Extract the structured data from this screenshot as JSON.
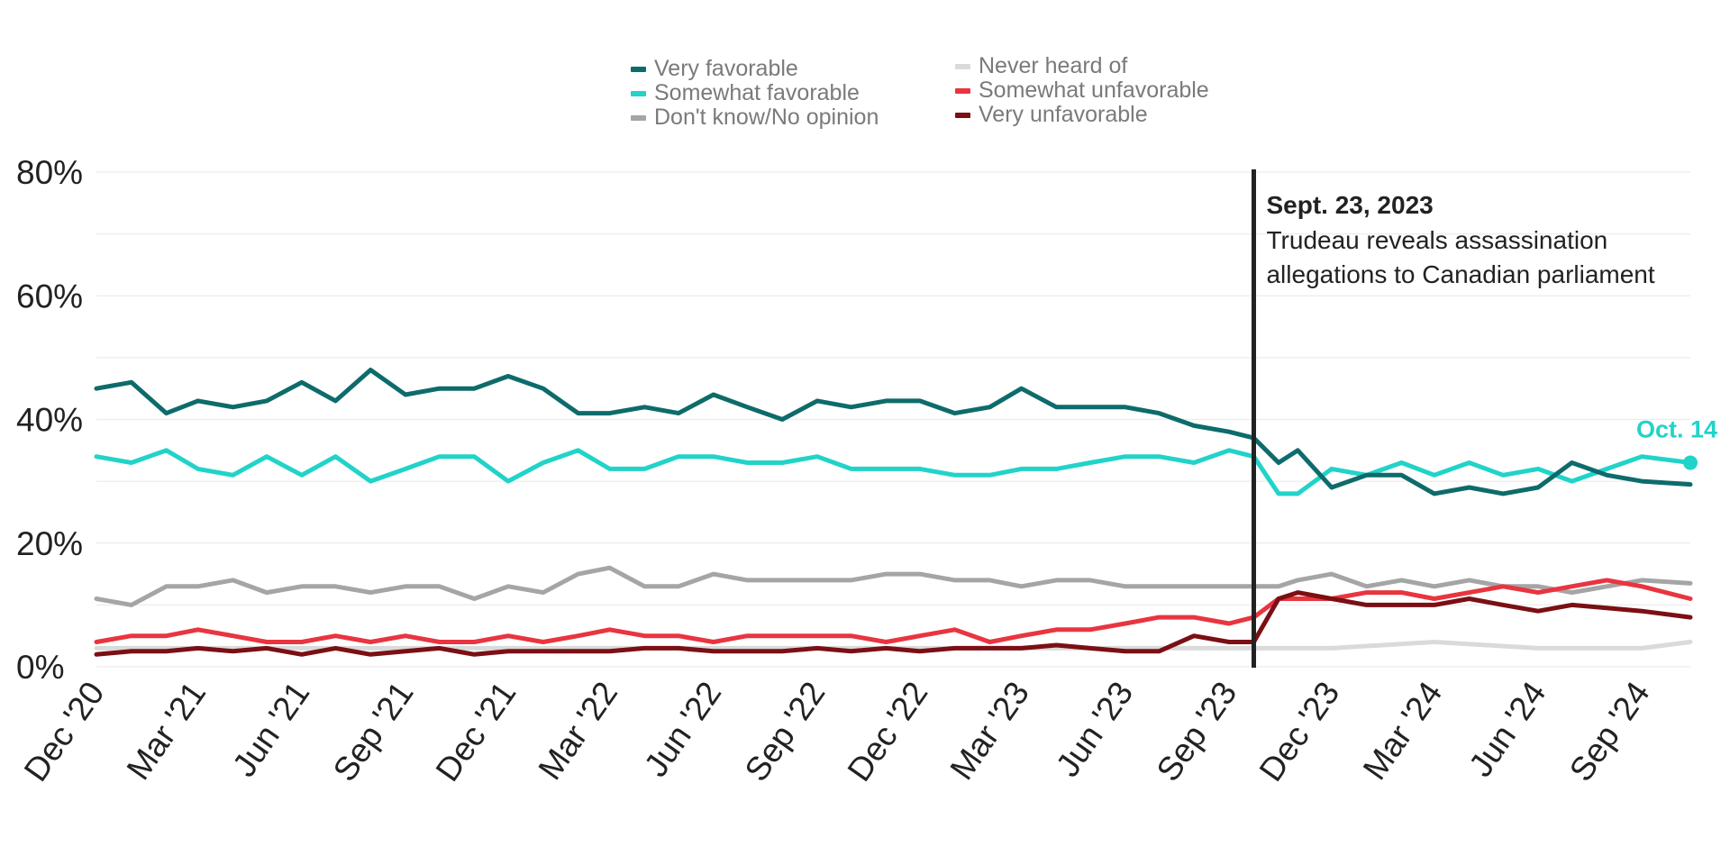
{
  "chart_data": {
    "type": "line",
    "ylim": [
      0,
      80
    ],
    "y_ticks": [
      "0%",
      "20%",
      "40%",
      "60%",
      "80%"
    ],
    "y_tick_values": [
      0,
      20,
      40,
      60,
      80
    ],
    "x_range": [
      "2020-12-01",
      "2024-10-14"
    ],
    "x_ticks": [
      {
        "label": "Dec '20",
        "date": "2020-12-01"
      },
      {
        "label": "Mar '21",
        "date": "2021-03-01"
      },
      {
        "label": "Jun '21",
        "date": "2021-06-01"
      },
      {
        "label": "Sep '21",
        "date": "2021-09-01"
      },
      {
        "label": "Dec '21",
        "date": "2021-12-01"
      },
      {
        "label": "Mar '22",
        "date": "2022-03-01"
      },
      {
        "label": "Jun '22",
        "date": "2022-06-01"
      },
      {
        "label": "Sep '22",
        "date": "2022-09-01"
      },
      {
        "label": "Dec '22",
        "date": "2022-12-01"
      },
      {
        "label": "Mar '23",
        "date": "2023-03-01"
      },
      {
        "label": "Jun '23",
        "date": "2023-06-01"
      },
      {
        "label": "Sep '23",
        "date": "2023-09-01"
      },
      {
        "label": "Dec '23",
        "date": "2023-12-01"
      },
      {
        "label": "Mar '24",
        "date": "2024-03-01"
      },
      {
        "label": "Jun '24",
        "date": "2024-06-01"
      },
      {
        "label": "Sep '24",
        "date": "2024-09-01"
      }
    ],
    "grid": true,
    "legend_position": "top-center",
    "annotation": {
      "date": "2023-09-23",
      "title": "Sept. 23, 2023",
      "text_line1": "Trudeau reveals assassination",
      "text_line2": "allegations to Canadian parliament"
    },
    "end_label": "Oct. 14",
    "series": [
      {
        "name": "Very favorable",
        "color": "#0e6b6b",
        "x": [
          "2020-12-01",
          "2021-01-01",
          "2021-02-01",
          "2021-03-01",
          "2021-04-01",
          "2021-05-01",
          "2021-06-01",
          "2021-07-01",
          "2021-08-01",
          "2021-09-01",
          "2021-10-01",
          "2021-11-01",
          "2021-12-01",
          "2022-01-01",
          "2022-02-01",
          "2022-03-01",
          "2022-04-01",
          "2022-05-01",
          "2022-06-01",
          "2022-07-01",
          "2022-08-01",
          "2022-09-01",
          "2022-10-01",
          "2022-11-01",
          "2022-12-01",
          "2023-01-01",
          "2023-02-01",
          "2023-03-01",
          "2023-04-01",
          "2023-05-01",
          "2023-06-01",
          "2023-07-01",
          "2023-08-01",
          "2023-09-01",
          "2023-09-23",
          "2023-10-15",
          "2023-11-01",
          "2023-12-01",
          "2024-01-01",
          "2024-02-01",
          "2024-03-01",
          "2024-04-01",
          "2024-05-01",
          "2024-06-01",
          "2024-07-01",
          "2024-08-01",
          "2024-09-01",
          "2024-10-14"
        ],
        "values": [
          45,
          46,
          41,
          43,
          42,
          43,
          46,
          43,
          48,
          44,
          45,
          45,
          47,
          45,
          41,
          41,
          42,
          41,
          44,
          42,
          40,
          43,
          42,
          43,
          43,
          41,
          42,
          45,
          42,
          42,
          42,
          41,
          39,
          38,
          37,
          33,
          35,
          29,
          31,
          31,
          28,
          29,
          28,
          29,
          33,
          31,
          30,
          29.5
        ]
      },
      {
        "name": "Somewhat favorable",
        "color": "#21d3c9",
        "x": [
          "2020-12-01",
          "2021-01-01",
          "2021-02-01",
          "2021-03-01",
          "2021-04-01",
          "2021-05-01",
          "2021-06-01",
          "2021-07-01",
          "2021-08-01",
          "2021-09-01",
          "2021-10-01",
          "2021-11-01",
          "2021-12-01",
          "2022-01-01",
          "2022-02-01",
          "2022-03-01",
          "2022-04-01",
          "2022-05-01",
          "2022-06-01",
          "2022-07-01",
          "2022-08-01",
          "2022-09-01",
          "2022-10-01",
          "2022-11-01",
          "2022-12-01",
          "2023-01-01",
          "2023-02-01",
          "2023-03-01",
          "2023-04-01",
          "2023-05-01",
          "2023-06-01",
          "2023-07-01",
          "2023-08-01",
          "2023-09-01",
          "2023-09-23",
          "2023-10-15",
          "2023-11-01",
          "2023-12-01",
          "2024-01-01",
          "2024-02-01",
          "2024-03-01",
          "2024-04-01",
          "2024-05-01",
          "2024-06-01",
          "2024-07-01",
          "2024-08-01",
          "2024-09-01",
          "2024-10-14"
        ],
        "values": [
          34,
          33,
          35,
          32,
          31,
          34,
          31,
          34,
          30,
          32,
          34,
          34,
          30,
          33,
          35,
          32,
          32,
          34,
          34,
          33,
          33,
          34,
          32,
          32,
          32,
          31,
          31,
          32,
          32,
          33,
          34,
          34,
          33,
          35,
          34,
          28,
          28,
          32,
          31,
          33,
          31,
          33,
          31,
          32,
          30,
          32,
          34,
          33
        ]
      },
      {
        "name": "Don't know/No opinion",
        "color": "#a4a6a6",
        "x": [
          "2020-12-01",
          "2021-01-01",
          "2021-02-01",
          "2021-03-01",
          "2021-04-01",
          "2021-05-01",
          "2021-06-01",
          "2021-07-01",
          "2021-08-01",
          "2021-09-01",
          "2021-10-01",
          "2021-11-01",
          "2021-12-01",
          "2022-01-01",
          "2022-02-01",
          "2022-03-01",
          "2022-04-01",
          "2022-05-01",
          "2022-06-01",
          "2022-07-01",
          "2022-08-01",
          "2022-09-01",
          "2022-10-01",
          "2022-11-01",
          "2022-12-01",
          "2023-01-01",
          "2023-02-01",
          "2023-03-01",
          "2023-04-01",
          "2023-05-01",
          "2023-06-01",
          "2023-07-01",
          "2023-08-01",
          "2023-09-01",
          "2023-09-23",
          "2023-10-15",
          "2023-11-01",
          "2023-12-01",
          "2024-01-01",
          "2024-02-01",
          "2024-03-01",
          "2024-04-01",
          "2024-05-01",
          "2024-06-01",
          "2024-07-01",
          "2024-08-01",
          "2024-09-01",
          "2024-10-14"
        ],
        "values": [
          11,
          10,
          13,
          13,
          14,
          12,
          13,
          13,
          12,
          13,
          13,
          11,
          13,
          12,
          15,
          16,
          13,
          13,
          15,
          14,
          14,
          14,
          14,
          15,
          15,
          14,
          14,
          13,
          14,
          14,
          13,
          13,
          13,
          13,
          13,
          13,
          14,
          15,
          13,
          14,
          13,
          14,
          13,
          13,
          12,
          13,
          14,
          13.5
        ]
      },
      {
        "name": "Never heard of",
        "color": "#d9dbdb",
        "x": [
          "2020-12-01",
          "2021-03-01",
          "2021-06-01",
          "2021-09-01",
          "2021-12-01",
          "2022-03-01",
          "2022-06-01",
          "2022-09-01",
          "2022-12-01",
          "2023-03-01",
          "2023-06-01",
          "2023-09-01",
          "2023-09-23",
          "2023-12-01",
          "2024-03-01",
          "2024-06-01",
          "2024-09-01",
          "2024-10-14"
        ],
        "values": [
          3,
          3,
          3,
          3,
          3,
          3,
          3,
          3,
          3,
          3,
          3,
          3,
          3,
          3,
          4,
          3,
          3,
          4
        ]
      },
      {
        "name": "Somewhat unfavorable",
        "color": "#e8353f",
        "x": [
          "2020-12-01",
          "2021-01-01",
          "2021-02-01",
          "2021-03-01",
          "2021-04-01",
          "2021-05-01",
          "2021-06-01",
          "2021-07-01",
          "2021-08-01",
          "2021-09-01",
          "2021-10-01",
          "2021-11-01",
          "2021-12-01",
          "2022-01-01",
          "2022-02-01",
          "2022-03-01",
          "2022-04-01",
          "2022-05-01",
          "2022-06-01",
          "2022-07-01",
          "2022-08-01",
          "2022-09-01",
          "2022-10-01",
          "2022-11-01",
          "2022-12-01",
          "2023-01-01",
          "2023-02-01",
          "2023-03-01",
          "2023-04-01",
          "2023-05-01",
          "2023-06-01",
          "2023-07-01",
          "2023-08-01",
          "2023-09-01",
          "2023-09-23",
          "2023-10-15",
          "2023-11-01",
          "2023-12-01",
          "2024-01-01",
          "2024-02-01",
          "2024-03-01",
          "2024-04-01",
          "2024-05-01",
          "2024-06-01",
          "2024-07-01",
          "2024-08-01",
          "2024-09-01",
          "2024-10-14"
        ],
        "values": [
          4,
          5,
          5,
          6,
          5,
          4,
          4,
          5,
          4,
          5,
          4,
          4,
          5,
          4,
          5,
          6,
          5,
          5,
          4,
          5,
          5,
          5,
          5,
          4,
          5,
          6,
          4,
          5,
          6,
          6,
          7,
          8,
          8,
          7,
          8,
          11,
          11,
          11,
          12,
          12,
          11,
          12,
          13,
          12,
          13,
          14,
          13,
          11
        ]
      },
      {
        "name": "Very unfavorable",
        "color": "#7b0f14",
        "x": [
          "2020-12-01",
          "2021-01-01",
          "2021-02-01",
          "2021-03-01",
          "2021-04-01",
          "2021-05-01",
          "2021-06-01",
          "2021-07-01",
          "2021-08-01",
          "2021-09-01",
          "2021-10-01",
          "2021-11-01",
          "2021-12-01",
          "2022-01-01",
          "2022-02-01",
          "2022-03-01",
          "2022-04-01",
          "2022-05-01",
          "2022-06-01",
          "2022-07-01",
          "2022-08-01",
          "2022-09-01",
          "2022-10-01",
          "2022-11-01",
          "2022-12-01",
          "2023-01-01",
          "2023-02-01",
          "2023-03-01",
          "2023-04-01",
          "2023-05-01",
          "2023-06-01",
          "2023-07-01",
          "2023-08-01",
          "2023-09-01",
          "2023-09-23",
          "2023-10-15",
          "2023-11-01",
          "2023-12-01",
          "2024-01-01",
          "2024-02-01",
          "2024-03-01",
          "2024-04-01",
          "2024-05-01",
          "2024-06-01",
          "2024-07-01",
          "2024-08-01",
          "2024-09-01",
          "2024-10-14"
        ],
        "values": [
          2,
          2.5,
          2.5,
          3,
          2.5,
          3,
          2,
          3,
          2,
          2.5,
          3,
          2,
          2.5,
          2.5,
          2.5,
          2.5,
          3,
          3,
          2.5,
          2.5,
          2.5,
          3,
          2.5,
          3,
          2.5,
          3,
          3,
          3,
          3.5,
          3,
          2.5,
          2.5,
          5,
          4,
          4,
          11,
          12,
          11,
          10,
          10,
          10,
          11,
          10,
          9,
          10,
          9.5,
          9,
          8
        ]
      }
    ]
  }
}
